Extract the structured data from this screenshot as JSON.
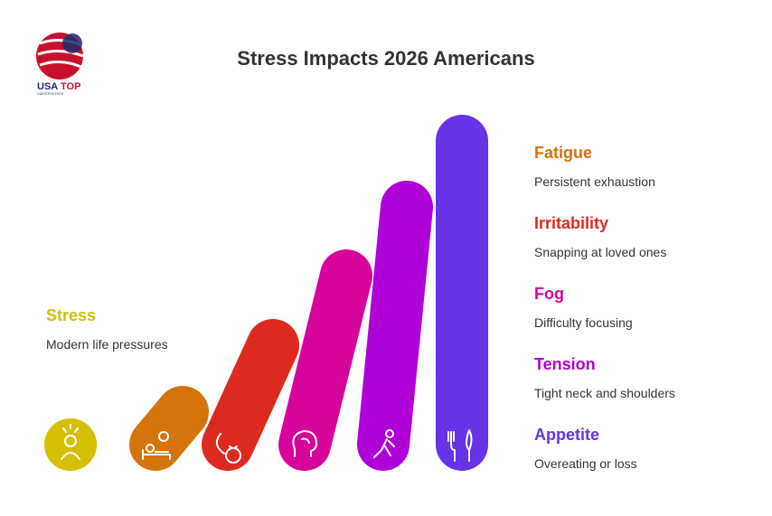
{
  "header": {
    "title": "Stress Impacts 2026 Americans"
  },
  "logo": {
    "word1": "USA",
    "word2": "TOP",
    "tagline": "GUESTPOSTSITE"
  },
  "left": {
    "label": "Stress",
    "description": "Modern life pressures"
  },
  "items": [
    {
      "label": "Fatigue",
      "description": "Persistent exhaustion"
    },
    {
      "label": "Irritability",
      "description": "Snapping at loved ones"
    },
    {
      "label": "Fog",
      "description": "Difficulty focusing"
    },
    {
      "label": "Tension",
      "description": "Tight neck and shoulders"
    },
    {
      "label": "Appetite",
      "description": "Overeating or loss"
    }
  ]
}
